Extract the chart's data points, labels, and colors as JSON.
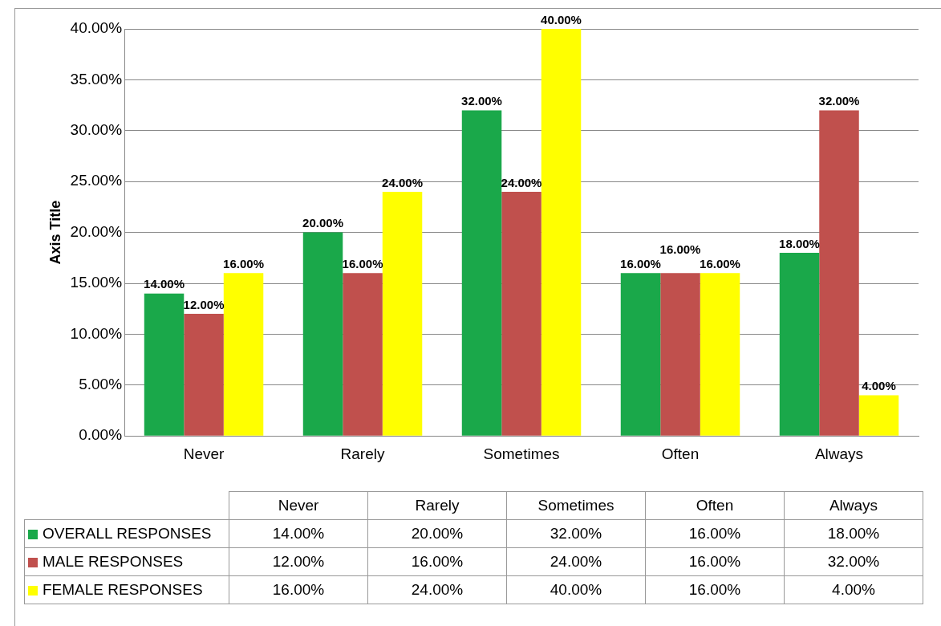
{
  "chart_data": {
    "type": "bar",
    "ylabel": "Axis Title",
    "categories": [
      "Never",
      "Rarely",
      "Sometimes",
      "Often",
      "Always"
    ],
    "series": [
      {
        "name": "OVERALL RESPONSES",
        "color": "#1aa84a",
        "values": [
          14,
          20,
          32,
          16,
          18
        ],
        "value_labels": [
          "14.00%",
          "20.00%",
          "32.00%",
          "16.00%",
          "18.00%"
        ]
      },
      {
        "name": "MALE RESPONSES",
        "color": "#c0504d",
        "values": [
          12,
          16,
          24,
          16,
          32
        ],
        "value_labels": [
          "12.00%",
          "16.00%",
          "24.00%",
          "16.00%",
          "32.00%"
        ]
      },
      {
        "name": "FEMALE RESPONSES",
        "color": "#ffff00",
        "values": [
          16,
          24,
          40,
          16,
          4
        ],
        "value_labels": [
          "16.00%",
          "24.00%",
          "40.00%",
          "16.00%",
          "4.00%"
        ]
      }
    ],
    "ylim": [
      0,
      40
    ],
    "yticks": [
      {
        "value": 0,
        "label": "0.00%"
      },
      {
        "value": 5,
        "label": "5.00%"
      },
      {
        "value": 10,
        "label": "10.00%"
      },
      {
        "value": 15,
        "label": "15.00%"
      },
      {
        "value": 20,
        "label": "20.00%"
      },
      {
        "value": 25,
        "label": "25.00%"
      },
      {
        "value": 30,
        "label": "30.00%"
      },
      {
        "value": 35,
        "label": "35.00%"
      },
      {
        "value": 40,
        "label": "40.00%"
      }
    ],
    "grid": "y",
    "legend": "bottom"
  }
}
